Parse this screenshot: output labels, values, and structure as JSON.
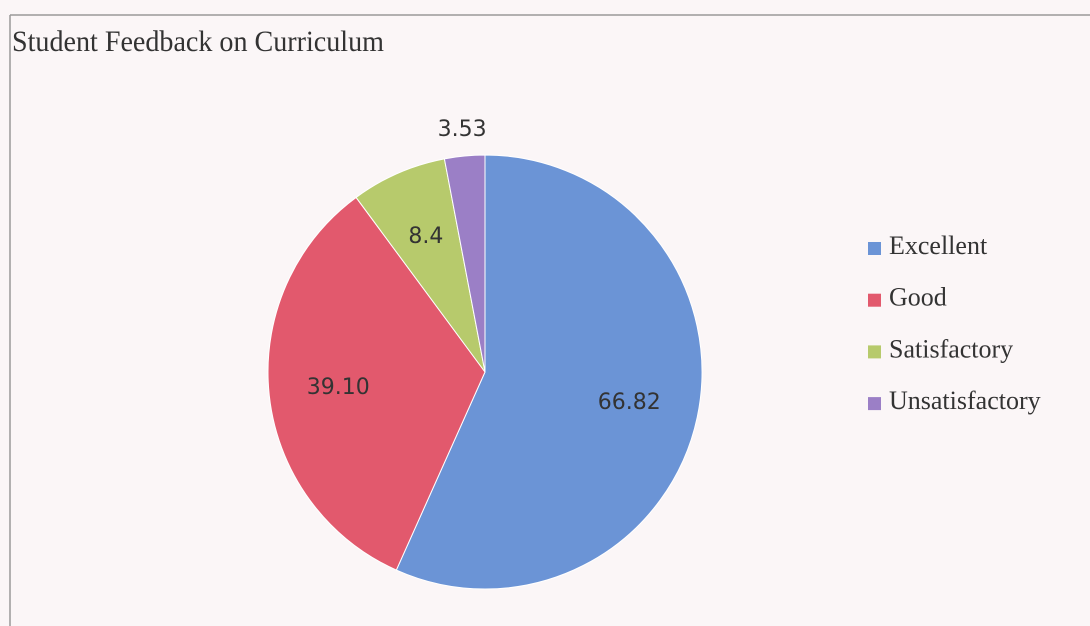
{
  "chart_data": {
    "type": "pie",
    "title": "Student Feedback on Curriculum",
    "categories": [
      "Excellent",
      "Good",
      "Satisfactory",
      "Unsatisfactory"
    ],
    "values": [
      66.82,
      39.1,
      8.4,
      3.53
    ],
    "value_labels": [
      "66.82",
      "39.10",
      "8.4",
      "3.53"
    ],
    "colors": [
      "#6b94d6",
      "#e2596d",
      "#b7ca6c",
      "#9b7fc6"
    ],
    "legend": "right"
  }
}
